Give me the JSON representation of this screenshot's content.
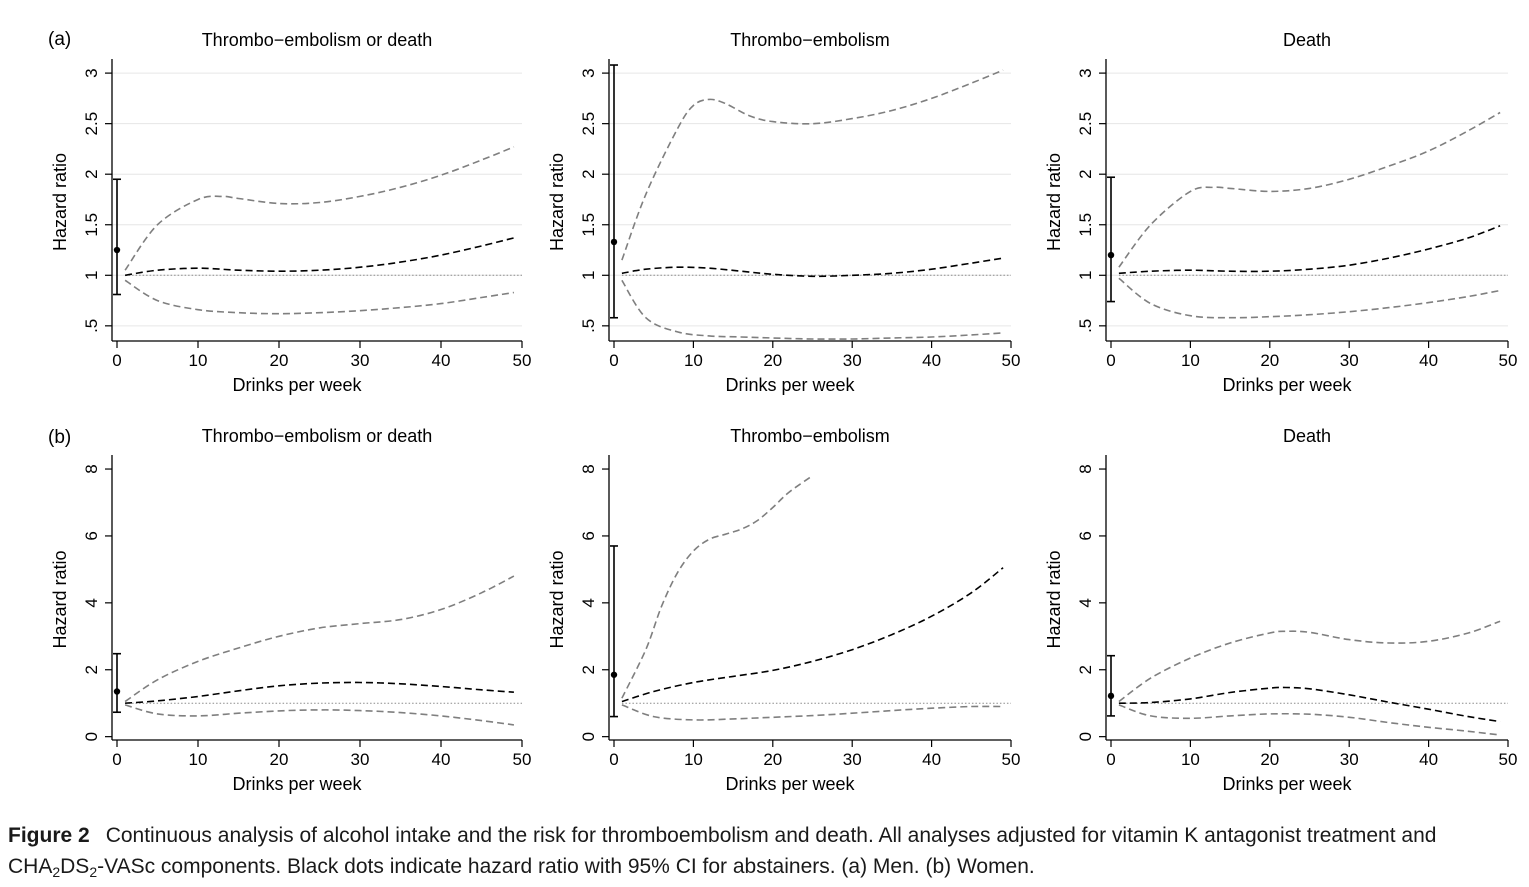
{
  "figure": {
    "caption_label": "Figure 2",
    "caption_parts": [
      "Continuous analysis of alcohol intake and the risk for thromboembolism and death. All analyses adjusted for vitamin K antagonist treatment and CHA",
      "2",
      "DS",
      "2",
      "-VASc components. Black dots indicate hazard ratio with 95% CI for abstainers. (a) Men. (b) Women."
    ]
  },
  "colors": {
    "estimate": "#000000",
    "ci": "#7f7f7f",
    "reference": "#8c8c8c",
    "grid": "#e6e6e6",
    "axis": "#000000"
  },
  "chart_data": [
    {
      "panel_label": "(a)",
      "type": "line",
      "title": "Thrombo−embolism or death",
      "xlabel": "Drinks per week",
      "ylabel": "Hazard ratio",
      "xlim": [
        0,
        50
      ],
      "ylim": [
        0.35,
        3.1
      ],
      "xticks": [
        0,
        10,
        20,
        30,
        40,
        50
      ],
      "xtick_labels": [
        "0",
        "10",
        "20",
        "30",
        "40",
        "50"
      ],
      "yticks": [
        0.5,
        1,
        1.5,
        2,
        2.5,
        3
      ],
      "ytick_labels": [
        ".5",
        "1",
        "1.5",
        "2",
        "2.5",
        "3"
      ],
      "grid": true,
      "reference_line": 1,
      "abstainer": {
        "x": 0,
        "hr": 1.25,
        "ci_low": 0.81,
        "ci_high": 1.95
      },
      "series": [
        {
          "role": "estimate",
          "x": [
            1,
            5,
            10,
            15,
            20,
            25,
            30,
            35,
            40,
            45,
            49
          ],
          "y": [
            1.0,
            1.05,
            1.07,
            1.05,
            1.04,
            1.05,
            1.08,
            1.13,
            1.2,
            1.29,
            1.37
          ]
        },
        {
          "role": "ci_upper",
          "x": [
            1,
            5,
            10,
            13,
            15,
            20,
            25,
            30,
            35,
            40,
            45,
            49
          ],
          "y": [
            1.05,
            1.5,
            1.75,
            1.78,
            1.76,
            1.71,
            1.72,
            1.78,
            1.87,
            1.99,
            2.14,
            2.27
          ]
        },
        {
          "role": "ci_lower",
          "x": [
            1,
            5,
            10,
            15,
            20,
            25,
            30,
            35,
            40,
            45,
            49
          ],
          "y": [
            0.95,
            0.75,
            0.66,
            0.63,
            0.62,
            0.63,
            0.65,
            0.68,
            0.72,
            0.78,
            0.83
          ]
        }
      ]
    },
    {
      "type": "line",
      "title": "Thrombo−embolism",
      "xlabel": "Drinks per week",
      "ylabel": "Hazard ratio",
      "xlim": [
        0,
        50
      ],
      "ylim": [
        0.35,
        3.1
      ],
      "xticks": [
        0,
        10,
        20,
        30,
        40,
        50
      ],
      "xtick_labels": [
        "0",
        "10",
        "20",
        "30",
        "40",
        "50"
      ],
      "yticks": [
        0.5,
        1,
        1.5,
        2,
        2.5,
        3
      ],
      "ytick_labels": [
        ".5",
        "1",
        "1.5",
        "2",
        "2.5",
        "3"
      ],
      "grid": true,
      "reference_line": 1,
      "abstainer": {
        "x": 0,
        "hr": 1.33,
        "ci_low": 0.58,
        "ci_high": 3.08
      },
      "series": [
        {
          "role": "estimate",
          "x": [
            1,
            4,
            8,
            12,
            16,
            20,
            25,
            30,
            35,
            40,
            45,
            49
          ],
          "y": [
            1.02,
            1.06,
            1.08,
            1.07,
            1.04,
            1.01,
            0.99,
            1.0,
            1.02,
            1.06,
            1.12,
            1.17
          ]
        },
        {
          "role": "ci_upper",
          "x": [
            1,
            4,
            8,
            10,
            12,
            14,
            17,
            20,
            25,
            30,
            35,
            40,
            45,
            49
          ],
          "y": [
            1.15,
            1.8,
            2.45,
            2.68,
            2.74,
            2.7,
            2.58,
            2.52,
            2.5,
            2.55,
            2.63,
            2.75,
            2.9,
            3.03
          ]
        },
        {
          "role": "ci_lower",
          "x": [
            1,
            4,
            8,
            12,
            16,
            20,
            25,
            30,
            35,
            40,
            45,
            49
          ],
          "y": [
            0.95,
            0.58,
            0.44,
            0.4,
            0.39,
            0.38,
            0.37,
            0.37,
            0.38,
            0.39,
            0.41,
            0.43
          ]
        }
      ]
    },
    {
      "type": "line",
      "title": "Death",
      "xlabel": "Drinks per week",
      "ylabel": "Hazard ratio",
      "xlim": [
        0,
        50
      ],
      "ylim": [
        0.35,
        3.1
      ],
      "xticks": [
        0,
        10,
        20,
        30,
        40,
        50
      ],
      "xtick_labels": [
        "0",
        "10",
        "20",
        "30",
        "40",
        "50"
      ],
      "yticks": [
        0.5,
        1,
        1.5,
        2,
        2.5,
        3
      ],
      "ytick_labels": [
        ".5",
        "1",
        "1.5",
        "2",
        "2.5",
        "3"
      ],
      "grid": true,
      "reference_line": 1,
      "abstainer": {
        "x": 0,
        "hr": 1.2,
        "ci_low": 0.74,
        "ci_high": 1.97
      },
      "series": [
        {
          "role": "estimate",
          "x": [
            1,
            5,
            10,
            15,
            20,
            25,
            30,
            35,
            40,
            45,
            49
          ],
          "y": [
            1.02,
            1.04,
            1.05,
            1.04,
            1.04,
            1.06,
            1.1,
            1.17,
            1.26,
            1.37,
            1.49
          ]
        },
        {
          "role": "ci_upper",
          "x": [
            1,
            5,
            10,
            13,
            15,
            20,
            25,
            30,
            35,
            40,
            45,
            49
          ],
          "y": [
            1.08,
            1.5,
            1.83,
            1.87,
            1.86,
            1.83,
            1.86,
            1.95,
            2.08,
            2.23,
            2.43,
            2.61
          ]
        },
        {
          "role": "ci_lower",
          "x": [
            1,
            5,
            10,
            15,
            20,
            25,
            30,
            35,
            40,
            45,
            49
          ],
          "y": [
            0.97,
            0.72,
            0.6,
            0.58,
            0.59,
            0.61,
            0.64,
            0.68,
            0.73,
            0.79,
            0.85
          ]
        }
      ]
    },
    {
      "panel_label": "(b)",
      "type": "line",
      "title": "Thrombo−embolism or death",
      "xlabel": "Drinks per week",
      "ylabel": "Hazard ratio",
      "xlim": [
        0,
        50
      ],
      "ylim": [
        -0.1,
        8.3
      ],
      "xticks": [
        0,
        10,
        20,
        30,
        40,
        50
      ],
      "xtick_labels": [
        "0",
        "10",
        "20",
        "30",
        "40",
        "50"
      ],
      "yticks": [
        0,
        2,
        4,
        6,
        8
      ],
      "ytick_labels": [
        "0",
        "2",
        "4",
        "6",
        "8"
      ],
      "grid": false,
      "reference_line": 1,
      "abstainer": {
        "x": 0,
        "hr": 1.35,
        "ci_low": 0.73,
        "ci_high": 2.48
      },
      "series": [
        {
          "role": "estimate",
          "x": [
            1,
            5,
            10,
            15,
            20,
            25,
            30,
            35,
            40,
            45,
            49
          ],
          "y": [
            1.0,
            1.07,
            1.2,
            1.37,
            1.52,
            1.6,
            1.62,
            1.58,
            1.5,
            1.4,
            1.33
          ]
        },
        {
          "role": "ci_upper",
          "x": [
            1,
            5,
            10,
            15,
            20,
            25,
            30,
            35,
            40,
            45,
            49
          ],
          "y": [
            1.05,
            1.7,
            2.25,
            2.65,
            3.0,
            3.25,
            3.38,
            3.5,
            3.8,
            4.3,
            4.8
          ]
        },
        {
          "role": "ci_lower",
          "x": [
            1,
            5,
            10,
            15,
            20,
            25,
            30,
            35,
            40,
            45,
            49
          ],
          "y": [
            0.95,
            0.68,
            0.62,
            0.7,
            0.77,
            0.8,
            0.78,
            0.72,
            0.62,
            0.48,
            0.35
          ]
        }
      ]
    },
    {
      "type": "line",
      "title": "Thrombo−embolism",
      "xlabel": "Drinks per week",
      "ylabel": "Hazard ratio",
      "xlim": [
        0,
        50
      ],
      "ylim": [
        -0.1,
        8.3
      ],
      "xticks": [
        0,
        10,
        20,
        30,
        40,
        50
      ],
      "xtick_labels": [
        "0",
        "10",
        "20",
        "30",
        "40",
        "50"
      ],
      "yticks": [
        0,
        2,
        4,
        6,
        8
      ],
      "ytick_labels": [
        "0",
        "2",
        "4",
        "6",
        "8"
      ],
      "grid": false,
      "reference_line": 1,
      "abstainer": {
        "x": 0,
        "hr": 1.85,
        "ci_low": 0.6,
        "ci_high": 5.7
      },
      "series": [
        {
          "role": "estimate",
          "x": [
            1,
            5,
            10,
            15,
            20,
            25,
            30,
            35,
            40,
            45,
            49
          ],
          "y": [
            1.05,
            1.35,
            1.62,
            1.8,
            1.98,
            2.25,
            2.6,
            3.05,
            3.6,
            4.3,
            5.05
          ]
        },
        {
          "role": "ci_upper",
          "x": [
            1,
            4,
            6,
            8,
            10,
            12,
            14,
            16,
            18,
            20,
            22,
            25
          ],
          "y": [
            1.15,
            2.6,
            3.9,
            4.9,
            5.55,
            5.9,
            6.05,
            6.2,
            6.45,
            6.85,
            7.3,
            7.8
          ]
        },
        {
          "role": "ci_lower",
          "x": [
            1,
            5,
            10,
            15,
            20,
            25,
            30,
            35,
            40,
            45,
            49
          ],
          "y": [
            0.95,
            0.6,
            0.5,
            0.53,
            0.58,
            0.63,
            0.7,
            0.78,
            0.85,
            0.9,
            0.9
          ]
        }
      ]
    },
    {
      "type": "line",
      "title": "Death",
      "xlabel": "Drinks per week",
      "ylabel": "Hazard ratio",
      "xlim": [
        0,
        50
      ],
      "ylim": [
        -0.1,
        8.3
      ],
      "xticks": [
        0,
        10,
        20,
        30,
        40,
        50
      ],
      "xtick_labels": [
        "0",
        "10",
        "20",
        "30",
        "40",
        "50"
      ],
      "yticks": [
        0,
        2,
        4,
        6,
        8
      ],
      "ytick_labels": [
        "0",
        "2",
        "4",
        "6",
        "8"
      ],
      "grid": false,
      "reference_line": 1,
      "abstainer": {
        "x": 0,
        "hr": 1.22,
        "ci_low": 0.62,
        "ci_high": 2.42
      },
      "series": [
        {
          "role": "estimate",
          "x": [
            1,
            5,
            10,
            15,
            20,
            22,
            25,
            30,
            35,
            40,
            45,
            49
          ],
          "y": [
            1.0,
            1.02,
            1.13,
            1.32,
            1.45,
            1.47,
            1.43,
            1.25,
            1.03,
            0.82,
            0.6,
            0.45
          ]
        },
        {
          "role": "ci_upper",
          "x": [
            1,
            5,
            10,
            15,
            20,
            22,
            25,
            30,
            35,
            40,
            45,
            49
          ],
          "y": [
            1.05,
            1.75,
            2.35,
            2.8,
            3.1,
            3.15,
            3.12,
            2.9,
            2.8,
            2.85,
            3.1,
            3.45
          ]
        },
        {
          "role": "ci_lower",
          "x": [
            1,
            5,
            10,
            15,
            20,
            25,
            30,
            35,
            40,
            45,
            49
          ],
          "y": [
            0.95,
            0.62,
            0.55,
            0.62,
            0.68,
            0.67,
            0.58,
            0.42,
            0.28,
            0.16,
            0.05
          ]
        }
      ]
    }
  ]
}
